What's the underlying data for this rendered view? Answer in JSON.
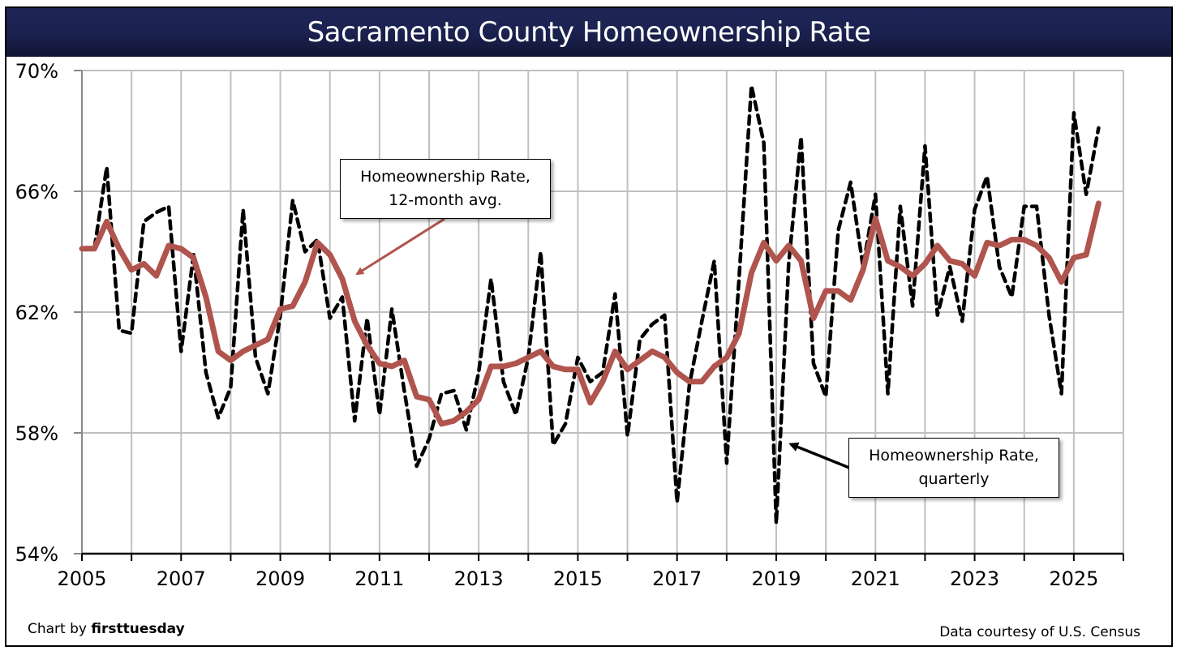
{
  "chart_data": {
    "type": "line",
    "title": "Sacramento County Homeownership Rate",
    "xlabel": "",
    "ylabel": "",
    "xlim": [
      2005,
      2026
    ],
    "ylim": [
      54,
      70
    ],
    "grid": true,
    "x_ticks": [
      "2005",
      "2007",
      "2009",
      "2011",
      "2013",
      "2015",
      "2017",
      "2019",
      "2021",
      "2023",
      "2025"
    ],
    "y_ticks": [
      "54%",
      "58%",
      "62%",
      "66%",
      "70%"
    ],
    "x_start": 2005,
    "x_step": 0.25,
    "series": [
      {
        "name": "Homeownership Rate, quarterly",
        "style": "dashed",
        "color": "#000000",
        "values": [
          64.1,
          64.1,
          66.8,
          61.4,
          61.3,
          65.0,
          65.3,
          65.5,
          60.7,
          63.9,
          60.0,
          58.5,
          59.5,
          65.4,
          60.5,
          59.3,
          61.9,
          65.7,
          64.0,
          64.4,
          61.8,
          62.5,
          58.4,
          61.8,
          58.6,
          62.1,
          59.4,
          56.9,
          57.8,
          59.3,
          59.4,
          58.1,
          60.0,
          63.1,
          59.7,
          58.6,
          60.5,
          64.0,
          57.6,
          58.3,
          60.5,
          59.7,
          60.0,
          62.6,
          57.9,
          61.1,
          61.6,
          61.9,
          55.7,
          59.6,
          61.7,
          63.7,
          57.0,
          63.1,
          69.5,
          67.6,
          55.0,
          63.6,
          67.8,
          60.3,
          59.2,
          64.7,
          66.3,
          63.5,
          65.9,
          59.3,
          65.5,
          62.2,
          67.5,
          61.9,
          63.5,
          61.7,
          65.4,
          66.5,
          63.5,
          62.5,
          65.5,
          65.5,
          61.9,
          59.3,
          68.6,
          65.9,
          68.1
        ]
      },
      {
        "name": "Homeownership Rate, 12-month avg.",
        "style": "solid",
        "color": "#b0544e",
        "values": [
          64.1,
          64.1,
          65.0,
          64.1,
          63.4,
          63.6,
          63.2,
          64.2,
          64.1,
          63.8,
          62.5,
          60.7,
          60.4,
          60.7,
          60.9,
          61.1,
          62.1,
          62.2,
          63.0,
          64.3,
          63.9,
          63.1,
          61.7,
          60.9,
          60.3,
          60.2,
          60.4,
          59.2,
          59.1,
          58.3,
          58.4,
          58.7,
          59.1,
          60.2,
          60.2,
          60.3,
          60.5,
          60.7,
          60.2,
          60.1,
          60.1,
          59.0,
          59.7,
          60.7,
          60.1,
          60.4,
          60.7,
          60.5,
          60.0,
          59.7,
          59.7,
          60.2,
          60.5,
          61.3,
          63.3,
          64.3,
          63.7,
          64.2,
          63.7,
          61.8,
          62.7,
          62.7,
          62.4,
          63.4,
          65.1,
          63.7,
          63.5,
          63.2,
          63.6,
          64.2,
          63.7,
          63.6,
          63.2,
          64.3,
          64.2,
          64.4,
          64.4,
          64.2,
          63.8,
          63.0,
          63.8,
          63.9,
          65.6
        ]
      }
    ],
    "annotations": [
      {
        "text": "Homeownership Rate,\n12-month avg.",
        "arrow_color": "#b0544e",
        "points_to": "12-month avg. line near 2010"
      },
      {
        "text": "Homeownership Rate,\nquarterly",
        "arrow_color": "#000000",
        "points_to": "quarterly line near 2019"
      }
    ]
  },
  "footer": {
    "credit_prefix": "Chart by ",
    "credit_brand": "firsttuesday",
    "source": "Data courtesy of U.S. Census"
  }
}
